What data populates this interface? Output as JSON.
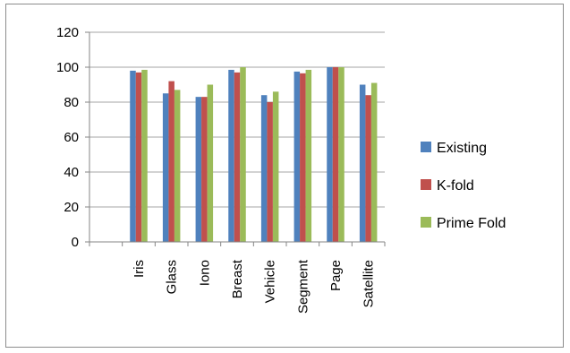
{
  "chart_data": {
    "type": "bar",
    "categories": [
      "Iris",
      "Glass",
      "Iono",
      "Breast",
      "Vehicle",
      "Segment",
      "Page",
      "Satellite"
    ],
    "series": [
      {
        "name": "Existing",
        "color": "#4f81bd",
        "values": [
          98,
          85,
          83,
          98.5,
          84,
          97.5,
          100,
          90
        ]
      },
      {
        "name": "K-fold",
        "color": "#c0504d",
        "values": [
          97,
          92,
          83,
          97,
          80,
          96.5,
          100,
          84
        ]
      },
      {
        "name": "Prime Fold",
        "color": "#9bbb59",
        "values": [
          98.5,
          87,
          90,
          100,
          86,
          98.5,
          100,
          91
        ]
      }
    ],
    "ylim": [
      0,
      120
    ],
    "yticks": [
      0,
      20,
      40,
      60,
      80,
      100,
      120
    ],
    "grid": true,
    "legend_position": "right"
  }
}
